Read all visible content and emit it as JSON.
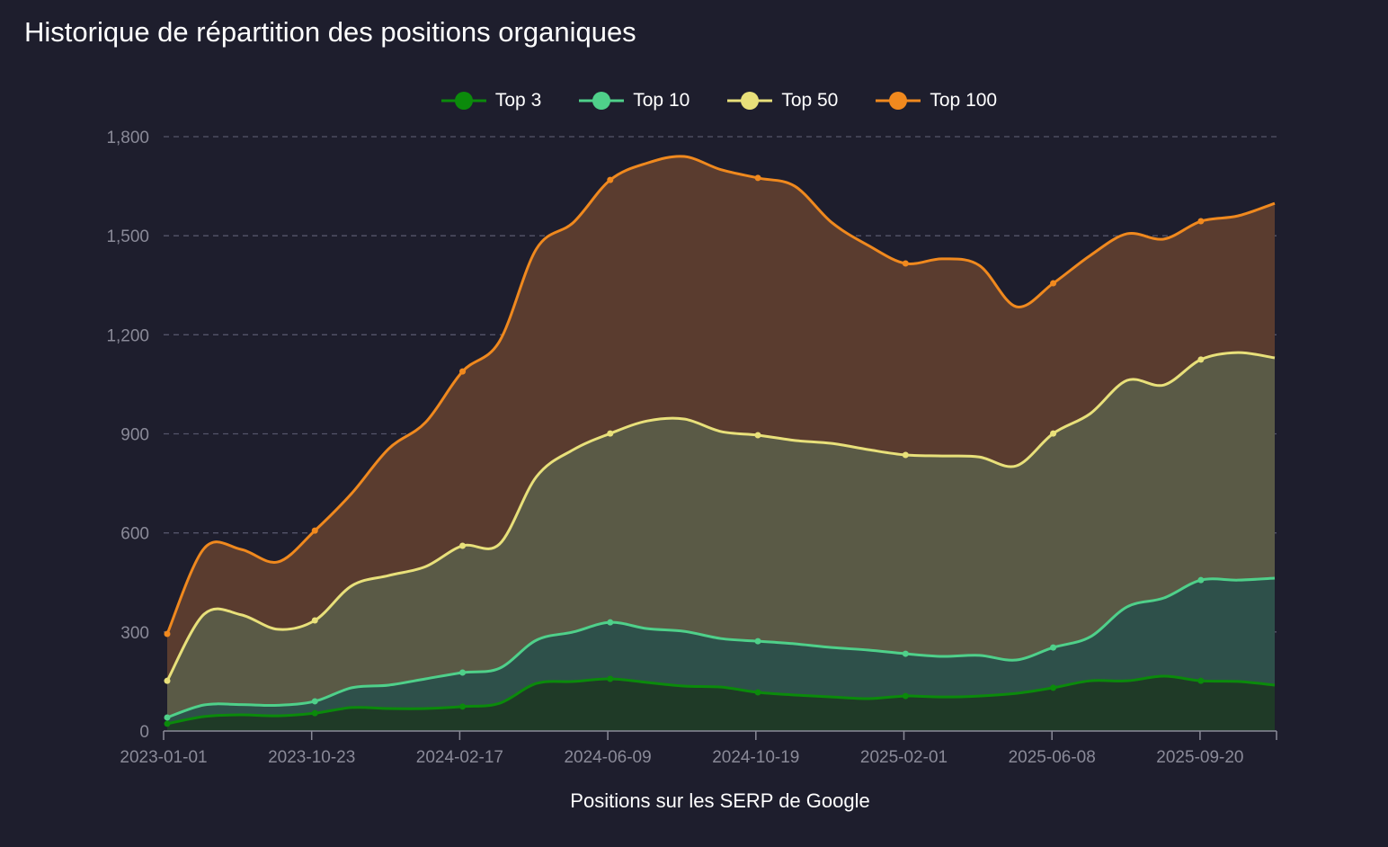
{
  "chart_data": {
    "type": "area",
    "title": "Historique de répartition des positions organiques",
    "xlabel": "Positions sur les SERP de Google",
    "ylabel": "",
    "ylim": [
      0,
      1800
    ],
    "y_ticks": [
      "0",
      "300",
      "600",
      "900",
      "1,200",
      "1,500",
      "1,800"
    ],
    "y_tick_values": [
      0,
      300,
      600,
      900,
      1200,
      1500,
      1800
    ],
    "x_tick_labels": [
      "2023-01-01",
      "2023-10-23",
      "2024-02-17",
      "2024-06-09",
      "2024-10-19",
      "2025-02-01",
      "2025-06-08",
      "2025-09-20"
    ],
    "grid": "horizontal dashed",
    "legend_placement": "top",
    "series": [
      {
        "name": "Top 100",
        "color": "#f0891e",
        "fill": "#5a3c2f",
        "values": [
          294,
          553,
          550,
          512,
          607,
          720,
          855,
          935,
          1089,
          1180,
          1460,
          1540,
          1669,
          1720,
          1740,
          1700,
          1675,
          1650,
          1540,
          1470,
          1416,
          1430,
          1410,
          1285,
          1356,
          1440,
          1506,
          1490,
          1544,
          1560,
          1598
        ]
      },
      {
        "name": "Top 50",
        "color": "#e8e07a",
        "fill": "#5a5a46",
        "values": [
          152,
          354,
          352,
          308,
          335,
          440,
          471,
          498,
          561,
          566,
          770,
          852,
          901,
          939,
          945,
          907,
          896,
          880,
          871,
          852,
          836,
          833,
          830,
          803,
          901,
          961,
          1062,
          1048,
          1125,
          1146,
          1130
        ]
      },
      {
        "name": "Top 10",
        "color": "#4fd08a",
        "fill": "#2e504a",
        "values": [
          41,
          79,
          80,
          78,
          90,
          131,
          139,
          158,
          177,
          190,
          275,
          300,
          329,
          310,
          302,
          280,
          272,
          264,
          253,
          245,
          234,
          226,
          229,
          215,
          253,
          285,
          376,
          403,
          457,
          457,
          463
        ]
      },
      {
        "name": "Top 3",
        "color": "#0b8a0b",
        "fill": "#1f3a27",
        "values": [
          22,
          44,
          49,
          46,
          54,
          71,
          68,
          68,
          74,
          84,
          144,
          150,
          158,
          147,
          136,
          133,
          117,
          109,
          103,
          98,
          106,
          103,
          106,
          114,
          131,
          152,
          152,
          166,
          152,
          150,
          139
        ]
      }
    ]
  }
}
